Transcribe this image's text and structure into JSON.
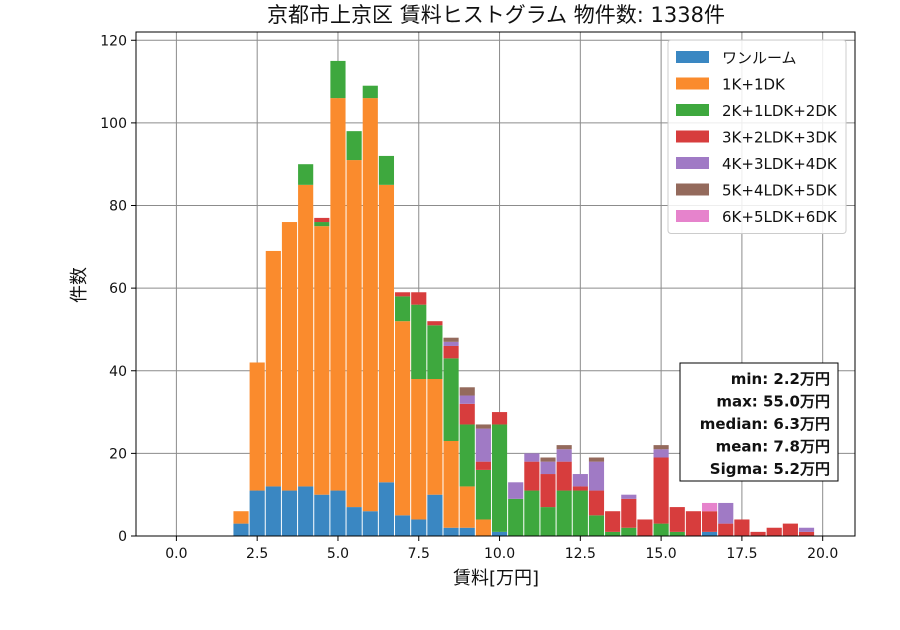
{
  "chart_data": {
    "type": "bar",
    "stacked": true,
    "title": "京都市上京区 賃料ヒストグラム 物件数: 1338件",
    "xlabel": "賃料[万円]",
    "ylabel": "件数",
    "xlim": [
      -1.25,
      21.0
    ],
    "ylim": [
      0,
      122
    ],
    "xticks": [
      0,
      2.5,
      5,
      7.5,
      10,
      12.5,
      15,
      17.5,
      20
    ],
    "xtick_labels": [
      "0.0",
      "2.5",
      "5.0",
      "7.5",
      "10.0",
      "12.5",
      "15.0",
      "17.5",
      "20.0"
    ],
    "yticks": [
      0,
      20,
      40,
      60,
      80,
      100,
      120
    ],
    "ytick_labels": [
      "0",
      "20",
      "40",
      "60",
      "80",
      "100",
      "120"
    ],
    "grid": true,
    "legend_position": "top-right",
    "bin_width": 0.5,
    "bin_starts": [
      1.75,
      2.25,
      2.75,
      3.25,
      3.75,
      4.25,
      4.75,
      5.25,
      5.75,
      6.25,
      6.75,
      7.25,
      7.75,
      8.25,
      8.75,
      9.25,
      9.75,
      10.25,
      10.75,
      11.25,
      11.75,
      12.25,
      12.75,
      13.25,
      13.75,
      14.25,
      14.75,
      15.25,
      15.75,
      16.25,
      16.75,
      17.25,
      17.75,
      18.25,
      18.75,
      19.25
    ],
    "series": [
      {
        "name": "ワンルーム",
        "color": "#3a87c2",
        "values": [
          3,
          11,
          12,
          11,
          12,
          10,
          11,
          7,
          6,
          13,
          5,
          4,
          10,
          2,
          2,
          0,
          1,
          0,
          0,
          0,
          0,
          0,
          0,
          0,
          0,
          0,
          0,
          0,
          0,
          1,
          0,
          0,
          0,
          0,
          0,
          0
        ]
      },
      {
        "name": "1K+1DK",
        "color": "#fa8b2d",
        "values": [
          3,
          31,
          57,
          65,
          73,
          65,
          95,
          84,
          100,
          72,
          47,
          34,
          28,
          21,
          10,
          4,
          0,
          0,
          0,
          0,
          0,
          0,
          0,
          0,
          0,
          0,
          0,
          0,
          0,
          0,
          0,
          0,
          0,
          0,
          0,
          0
        ]
      },
      {
        "name": "2K+1LDK+2DK",
        "color": "#3ea83e",
        "values": [
          0,
          0,
          0,
          0,
          5,
          1,
          9,
          7,
          3,
          7,
          6,
          18,
          13,
          20,
          15,
          12,
          26,
          9,
          11,
          7,
          11,
          11,
          5,
          1,
          2,
          0,
          3,
          1,
          0,
          0,
          0,
          0,
          0,
          0,
          0,
          0
        ]
      },
      {
        "name": "3K+2LDK+3DK",
        "color": "#d73d3d",
        "values": [
          0,
          0,
          0,
          0,
          0,
          1,
          0,
          0,
          0,
          0,
          1,
          3,
          1,
          3,
          5,
          2,
          3,
          0,
          7,
          8,
          7,
          1,
          6,
          5,
          7,
          4,
          16,
          6,
          6,
          5,
          3,
          4,
          1,
          2,
          3,
          1
        ]
      },
      {
        "name": "4K+3LDK+4DK",
        "color": "#a07ac5",
        "values": [
          0,
          0,
          0,
          0,
          0,
          0,
          0,
          0,
          0,
          0,
          0,
          0,
          0,
          1,
          2,
          8,
          0,
          4,
          2,
          3,
          3,
          3,
          7,
          0,
          1,
          0,
          2,
          0,
          0,
          0,
          5,
          0,
          0,
          0,
          0,
          1
        ]
      },
      {
        "name": "5K+4LDK+5DK",
        "color": "#946a5c",
        "values": [
          0,
          0,
          0,
          0,
          0,
          0,
          0,
          0,
          0,
          0,
          0,
          0,
          0,
          1,
          2,
          1,
          0,
          0,
          0,
          1,
          1,
          0,
          1,
          0,
          0,
          0,
          1,
          0,
          0,
          0,
          0,
          0,
          0,
          0,
          0,
          0
        ]
      },
      {
        "name": "6K+5LDK+6DK",
        "color": "#e683cc",
        "values": [
          0,
          0,
          0,
          0,
          0,
          0,
          0,
          0,
          0,
          0,
          0,
          0,
          0,
          0,
          0,
          0,
          0,
          0,
          0,
          0,
          0,
          0,
          0,
          0,
          0,
          0,
          0,
          0,
          0,
          2,
          0,
          0,
          0,
          0,
          0,
          0
        ]
      }
    ],
    "stats_box": [
      "min: 2.2万円",
      "max: 55.0万円",
      "median: 6.3万円",
      "mean: 7.8万円",
      "Sigma: 5.2万円"
    ]
  }
}
